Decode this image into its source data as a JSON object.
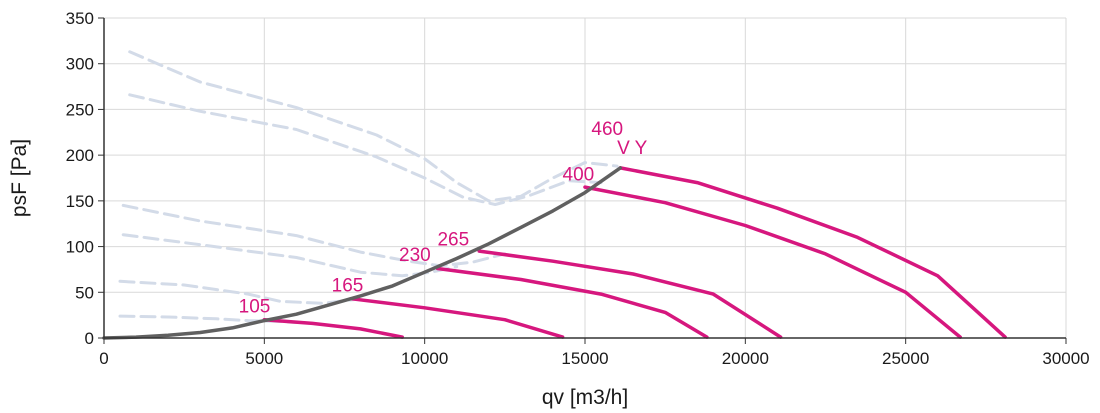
{
  "chart_data": {
    "type": "line",
    "xlabel": "qv [m3/h]",
    "ylabel": "psF [Pa]",
    "xlim": [
      0,
      30000
    ],
    "ylim": [
      0,
      350
    ],
    "x_ticks": [
      "0",
      "5000",
      "10000",
      "15000",
      "20000",
      "25000",
      "30000"
    ],
    "y_ticks": [
      "0",
      "50",
      "100",
      "150",
      "200",
      "250",
      "300",
      "350"
    ],
    "grid": true,
    "colors": {
      "operating_curve": "#d6177e",
      "system_curve": "#606060",
      "limit_curve": "#d3dbe8",
      "grid": "#d9d9d9",
      "axis": "#333333"
    },
    "operating_curves": [
      {
        "label": "105",
        "points": [
          [
            5000,
            20
          ],
          [
            6500,
            16
          ],
          [
            8000,
            10
          ],
          [
            9300,
            1
          ]
        ]
      },
      {
        "label": "165",
        "points": [
          [
            7700,
            43
          ],
          [
            10000,
            33
          ],
          [
            12500,
            20
          ],
          [
            14300,
            1
          ]
        ]
      },
      {
        "label": "230",
        "points": [
          [
            10400,
            76
          ],
          [
            13000,
            64
          ],
          [
            15500,
            48
          ],
          [
            17500,
            28
          ],
          [
            18800,
            1
          ]
        ]
      },
      {
        "label": "265",
        "points": [
          [
            11700,
            95
          ],
          [
            14000,
            84
          ],
          [
            16500,
            70
          ],
          [
            19000,
            48
          ],
          [
            21100,
            1
          ]
        ]
      },
      {
        "label": "400",
        "points": [
          [
            15000,
            165
          ],
          [
            17500,
            148
          ],
          [
            20000,
            123
          ],
          [
            22500,
            92
          ],
          [
            25000,
            50
          ],
          [
            26700,
            1
          ]
        ]
      },
      {
        "label": "460 V Y",
        "points": [
          [
            16100,
            186
          ],
          [
            18500,
            170
          ],
          [
            21000,
            142
          ],
          [
            23500,
            110
          ],
          [
            26000,
            68
          ],
          [
            28100,
            1
          ]
        ]
      }
    ],
    "system_curve": {
      "points": [
        [
          0,
          0
        ],
        [
          1000,
          1
        ],
        [
          2000,
          3
        ],
        [
          3000,
          6
        ],
        [
          4000,
          11
        ],
        [
          5000,
          19
        ],
        [
          6000,
          26
        ],
        [
          7000,
          36
        ],
        [
          8000,
          46
        ],
        [
          9000,
          57
        ],
        [
          10000,
          72
        ],
        [
          11000,
          87
        ],
        [
          12000,
          103
        ],
        [
          13000,
          121
        ],
        [
          14000,
          139
        ],
        [
          15000,
          159
        ],
        [
          16100,
          186
        ]
      ]
    },
    "limit_curves": [
      {
        "points": [
          [
            800,
            313
          ],
          [
            3000,
            280
          ],
          [
            6000,
            252
          ],
          [
            8500,
            222
          ],
          [
            10000,
            196
          ],
          [
            11000,
            170
          ],
          [
            12000,
            150
          ],
          [
            13000,
            155
          ],
          [
            14000,
            175
          ],
          [
            15000,
            192
          ],
          [
            16000,
            188
          ]
        ]
      },
      {
        "points": [
          [
            800,
            266
          ],
          [
            3000,
            248
          ],
          [
            6000,
            228
          ],
          [
            8500,
            198
          ],
          [
            10000,
            175
          ],
          [
            11200,
            154
          ],
          [
            12200,
            146
          ],
          [
            13200,
            155
          ],
          [
            14500,
            172
          ],
          [
            15500,
            170
          ]
        ]
      },
      {
        "points": [
          [
            600,
            145
          ],
          [
            3000,
            128
          ],
          [
            6000,
            112
          ],
          [
            8000,
            94
          ],
          [
            9500,
            84
          ],
          [
            10500,
            79
          ],
          [
            11500,
            83
          ],
          [
            12500,
            92
          ]
        ]
      },
      {
        "points": [
          [
            600,
            113
          ],
          [
            3000,
            102
          ],
          [
            6000,
            88
          ],
          [
            8000,
            72
          ],
          [
            9300,
            68
          ],
          [
            10200,
            72
          ],
          [
            11000,
            78
          ]
        ]
      },
      {
        "points": [
          [
            500,
            62
          ],
          [
            2500,
            58
          ],
          [
            4500,
            48
          ],
          [
            5500,
            40
          ],
          [
            6800,
            38
          ],
          [
            7800,
            42
          ]
        ]
      },
      {
        "points": [
          [
            500,
            24
          ],
          [
            2000,
            23
          ],
          [
            3500,
            21
          ],
          [
            4500,
            19
          ],
          [
            5500,
            18
          ],
          [
            6000,
            17
          ]
        ]
      }
    ],
    "label_positions": {
      "105": [
        4200,
        28
      ],
      "165": [
        7100,
        51
      ],
      "230": [
        9200,
        84
      ],
      "265": [
        10400,
        101
      ],
      "400": [
        14300,
        172
      ],
      "460": [
        15200,
        222
      ],
      "V Y": [
        16000,
        201
      ]
    }
  }
}
